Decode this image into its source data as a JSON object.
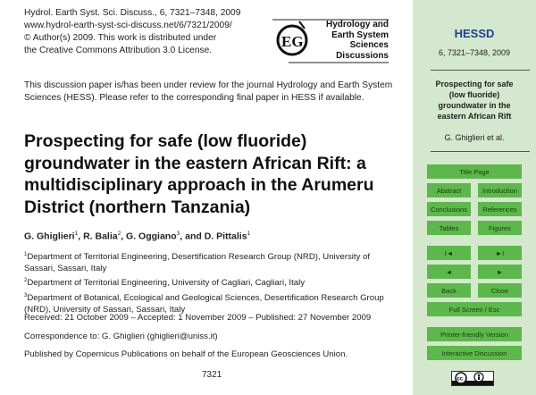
{
  "header": {
    "lines": [
      "Hydrol. Earth Syst. Sci. Discuss., 6, 7321–7348, 2009",
      "www.hydrol-earth-syst-sci-discuss.net/6/7321/2009/",
      "© Author(s) 2009. This work is distributed under",
      "the Creative Commons Attribution 3.0 License."
    ]
  },
  "logo": {
    "lines": [
      "Hydrology and",
      "Earth System",
      "Sciences",
      "Discussions"
    ]
  },
  "notice": "This discussion paper is/has been under review for the journal Hydrology and Earth System Sciences (HESS). Please refer to the corresponding final paper in HESS if available.",
  "title": "Prospecting for safe (low fluoride) groundwater in the eastern African Rift: a multidisciplinary approach in the Arumeru District (northern Tanzania)",
  "authors": [
    {
      "name": "G. Ghiglieri",
      "aff": "1"
    },
    {
      "name": "R. Balia",
      "aff": "2"
    },
    {
      "name": "G. Oggiano",
      "aff": "3"
    },
    {
      "name": "D. Pittalis",
      "aff": "1"
    }
  ],
  "authors_and": "and",
  "affiliations": [
    {
      "num": "1",
      "text": "Department of Territorial Engineering, Desertification Research Group (NRD), University of Sassari, Sassari, Italy"
    },
    {
      "num": "2",
      "text": "Department of Territorial Engineering, University of Cagliari, Cagliari, Italy"
    },
    {
      "num": "3",
      "text": "Department of Botanical, Ecological and Geological Sciences, Desertification Research Group (NRD), University of Sassari, Sassari, Italy"
    }
  ],
  "dates": "Received: 21 October 2009 – Accepted: 1 November 2009 – Published: 27 November 2009",
  "correspondence": "Correspondence to: G. Ghiglieri (ghiglieri@uniss.it)",
  "publisher": "Published by Copernicus Publications on behalf of the European Geosciences Union.",
  "page_number": "7321",
  "sidebar": {
    "journal": "HESSD",
    "volume": "6, 7321–7348, 2009",
    "short_title": "Prospecting for safe (low fluoride) groundwater in the eastern African Rift",
    "authors": "G. Ghiglieri et al.",
    "buttons": {
      "title_page": "Title Page",
      "abstract": "Abstract",
      "introduction": "Introduction",
      "conclusions": "Conclusions",
      "references": "References",
      "tables": "Tables",
      "figures": "Figures",
      "first": "I◄",
      "last": "►I",
      "prev": "◄",
      "next": "►",
      "back": "Back",
      "close": "Close",
      "fullscreen": "Full Screen / Esc",
      "printer": "Printer-friendly Version",
      "discussion": "Interactive Discussion"
    },
    "colors": {
      "panel": "#d3e8cc",
      "button": "#5cb84a",
      "journal": "#1f3f9a"
    },
    "license_badge": "cc-by-icon"
  }
}
